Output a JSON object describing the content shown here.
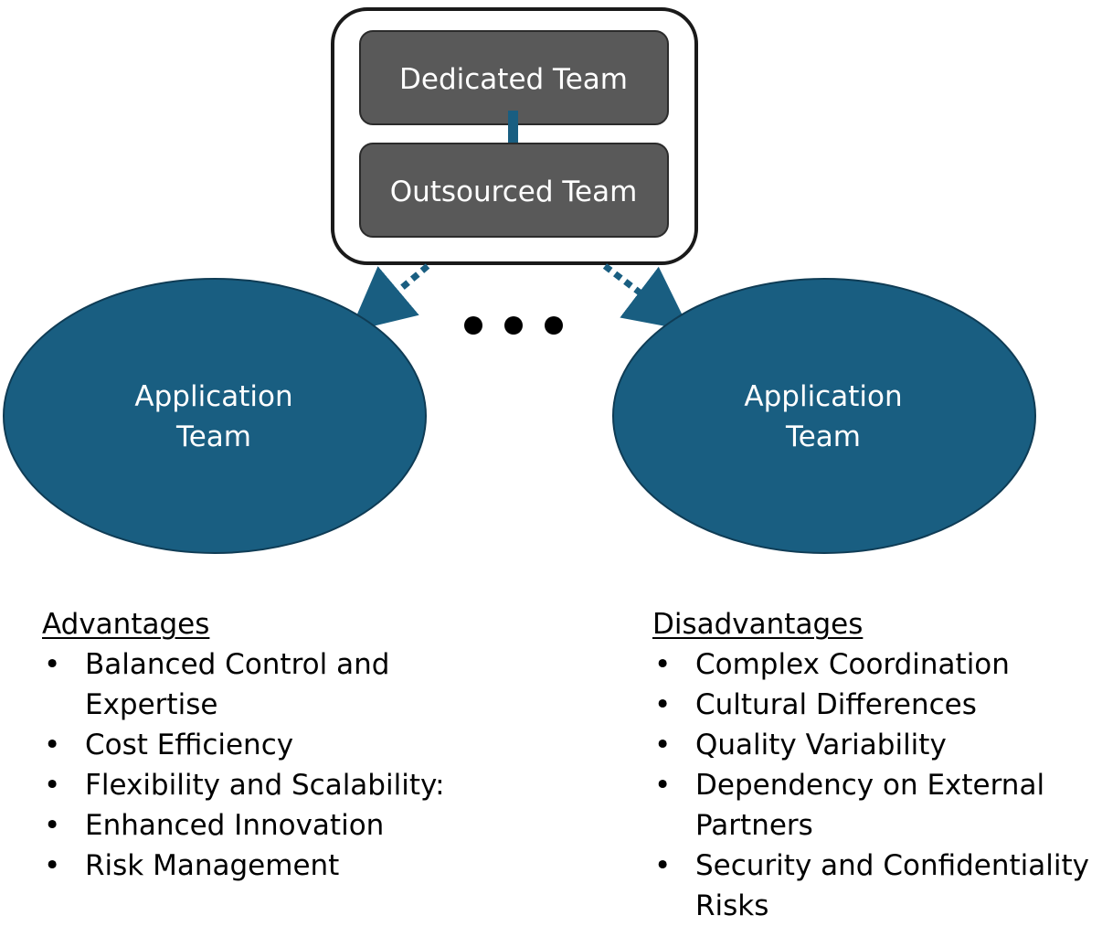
{
  "colors": {
    "box_fill": "#595959",
    "box_border": "#2b2b2b",
    "container_border": "#1a1a1a",
    "ellipse_fill": "#195e81",
    "ellipse_border": "#0f3c55",
    "connector": "#195e81",
    "text_light": "#ffffff",
    "text_dark": "#000000"
  },
  "hybrid_box": {
    "top_label": "Dedicated Team",
    "bottom_label": "Outsourced Team"
  },
  "teams": {
    "left_line1": "Application",
    "left_line2": "Team",
    "right_line1": "Application",
    "right_line2": "Team"
  },
  "advantages": {
    "heading": "Advantages",
    "items": [
      "Balanced Control and Expertise",
      "Cost Efficiency",
      "Flexibility and Scalability:",
      "Enhanced Innovation",
      "Risk Management"
    ]
  },
  "disadvantages": {
    "heading": "Disadvantages",
    "items": [
      "Complex Coordination",
      "Cultural Differences",
      "Quality Variability",
      "Dependency on External Partners",
      "Security and Confidentiality Risks"
    ]
  }
}
